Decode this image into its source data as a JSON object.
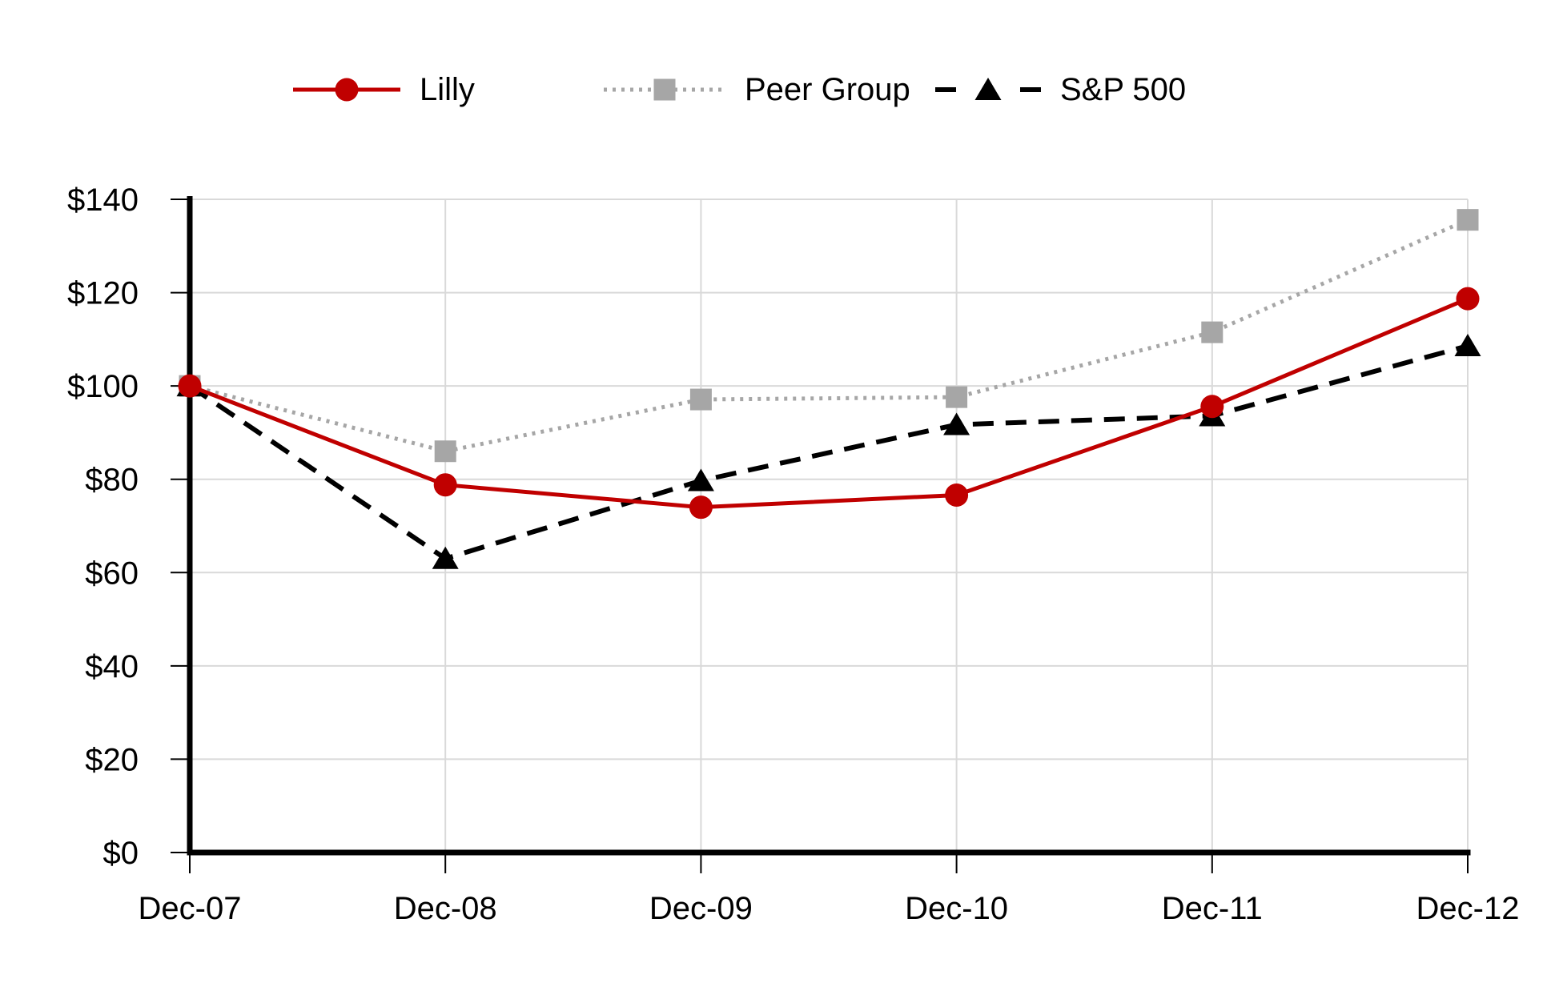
{
  "chart_data": {
    "type": "line",
    "title": "",
    "xlabel": "",
    "ylabel": "",
    "categories": [
      "Dec-07",
      "Dec-08",
      "Dec-09",
      "Dec-10",
      "Dec-11",
      "Dec-12"
    ],
    "series": [
      {
        "name": "Lilly",
        "values": [
          100,
          78.8,
          74.0,
          76.6,
          95.6,
          118.7
        ],
        "color": "#C00000",
        "marker": "circle",
        "line_style": "solid"
      },
      {
        "name": "Peer Group",
        "values": [
          100,
          86.0,
          97.1,
          97.6,
          111.5,
          135.6
        ],
        "color": "#A6A6A6",
        "marker": "square",
        "line_style": "dotted"
      },
      {
        "name": "S&P 500",
        "values": [
          100,
          63.0,
          79.7,
          91.7,
          93.6,
          108.6
        ],
        "color": "#000000",
        "marker": "triangle",
        "line_style": "dashed"
      }
    ],
    "ylim": [
      0,
      140
    ],
    "ytick_step": 20,
    "ytick_prefix": "$",
    "grid": true,
    "gridline_color": "#D9D9D9",
    "axis_color": "#000000",
    "legend_position": "top"
  }
}
